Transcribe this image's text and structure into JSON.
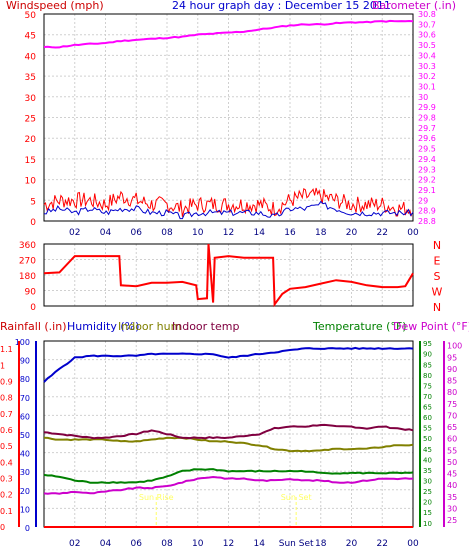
{
  "header": {
    "wind_label": "Windspeed (mph)",
    "title": "24 hour graph day : December 15 2011",
    "baro_label": "Barometer (.in)"
  },
  "colors": {
    "wind": "#ff0000",
    "wind_avg": "#0000cc",
    "barometer": "#ff00ff",
    "grid": "#d0d0d0",
    "rain": "#ff0000",
    "humidity": "#0000cc",
    "indoor_hum": "#808000",
    "indoor_temp": "#800040",
    "temperature": "#008000",
    "dew_point": "#cc00cc",
    "daylight_marker": "#ffff66"
  },
  "x_tick_labels": [
    "02",
    "04",
    "06",
    "08",
    "10",
    "12",
    "14",
    "16",
    "18",
    "20",
    "22",
    "00"
  ],
  "bottom_x_tick_labels": [
    "02",
    "04",
    "06",
    "08",
    "10",
    "12",
    "14",
    "Sun Set",
    "18",
    "20",
    "22",
    "00"
  ],
  "panel3": {
    "rain_label": "Rainfall (.in)",
    "humidity_label": "Humidity (%)",
    "indoor_hum_label": "Indoor hum",
    "indoor_temp_label": "Indoor temp",
    "temp_label": "Temperature (°F)",
    "dew_label": "Dew Point (°F)",
    "sunrise_label": "Sun Rise",
    "sunset_label": "Sun Set"
  },
  "chart_data": [
    {
      "type": "line",
      "title": "24 hour graph day : December 15 2011",
      "xlabel": "",
      "ylabel": "Windspeed (mph)",
      "y2label": "Barometer (.in)",
      "ylim": [
        0,
        50
      ],
      "y2lim": [
        28.8,
        30.8
      ],
      "yticks": [
        0,
        5,
        10,
        15,
        20,
        25,
        30,
        35,
        40,
        45,
        50
      ],
      "y2ticks": [
        28.8,
        28.9,
        29,
        29.1,
        29.2,
        29.3,
        29.4,
        29.5,
        29.6,
        29.7,
        29.8,
        29.9,
        30,
        30.1,
        30.2,
        30.3,
        30.4,
        30.5,
        30.6,
        30.7,
        30.8
      ],
      "x": [
        0,
        1,
        2,
        3,
        4,
        5,
        6,
        7,
        8,
        9,
        10,
        11,
        12,
        13,
        14,
        15,
        16,
        17,
        18,
        19,
        20,
        21,
        22,
        23,
        24
      ],
      "series": [
        {
          "name": "Windspeed (mph)",
          "axis": "left",
          "values": [
            2,
            3,
            2,
            3,
            2,
            3,
            3,
            2,
            2,
            1,
            2,
            2,
            2,
            2,
            2,
            1,
            3,
            3,
            4,
            3,
            2,
            2,
            2,
            2,
            2
          ]
        },
        {
          "name": "Gust",
          "axis": "left",
          "values": [
            4,
            5,
            5,
            5,
            4,
            6,
            5,
            4,
            4,
            3,
            4,
            4,
            4,
            4,
            4,
            3,
            5,
            6,
            6,
            5,
            4,
            4,
            4,
            3,
            3
          ]
        },
        {
          "name": "Barometer (.in)",
          "axis": "right",
          "values": [
            30.48,
            30.48,
            30.5,
            30.51,
            30.52,
            30.54,
            30.55,
            30.56,
            30.57,
            30.58,
            30.6,
            30.61,
            30.62,
            30.63,
            30.65,
            30.67,
            30.69,
            30.7,
            30.7,
            30.71,
            30.72,
            30.72,
            30.73,
            30.73,
            30.73
          ]
        }
      ]
    },
    {
      "type": "line",
      "ylabel": "Wind direction",
      "ylim": [
        0,
        360
      ],
      "yticks": [
        0,
        90,
        180,
        270,
        360
      ],
      "y2ticks": [
        "N",
        "W",
        "S",
        "E",
        "N"
      ],
      "x": [
        0,
        1,
        2,
        3,
        4,
        4.9,
        5,
        6,
        7,
        8,
        9,
        9.9,
        10,
        10.6,
        10.7,
        11,
        11.1,
        12,
        13,
        14,
        14.9,
        15,
        15.5,
        16,
        17,
        18,
        19,
        20,
        21,
        22,
        23,
        23.5,
        24
      ],
      "series": [
        {
          "name": "Wind direction",
          "values": [
            190,
            195,
            290,
            290,
            290,
            290,
            120,
            115,
            135,
            135,
            140,
            120,
            40,
            45,
            370,
            20,
            280,
            290,
            280,
            280,
            280,
            10,
            70,
            100,
            110,
            130,
            150,
            140,
            120,
            110,
            110,
            115,
            190
          ]
        }
      ]
    },
    {
      "type": "line",
      "xlabel": "",
      "ylabel": "Humidity (%)",
      "ylim": [
        0,
        100
      ],
      "yticks": [
        0,
        10,
        20,
        30,
        40,
        50,
        60,
        70,
        80,
        90,
        100
      ],
      "rain_ticks": [
        0,
        0.1,
        0.2,
        0.3,
        0.4,
        0.5,
        0.6,
        0.7,
        0.8,
        0.9,
        1,
        1.1
      ],
      "temp_ticks": [
        10,
        15,
        20,
        25,
        30,
        35,
        40,
        45,
        50,
        55,
        60,
        65,
        70,
        75,
        80,
        85,
        90,
        95
      ],
      "dew_ticks": [
        25,
        30,
        35,
        40,
        45,
        50,
        55,
        60,
        65,
        70,
        75,
        80,
        85,
        90,
        95,
        100
      ],
      "x": [
        0,
        1,
        2,
        3,
        4,
        5,
        6,
        7,
        8,
        9,
        10,
        11,
        12,
        13,
        14,
        15,
        16,
        17,
        18,
        19,
        20,
        21,
        22,
        23,
        24
      ],
      "series": [
        {
          "name": "Humidity (%)",
          "values": [
            78,
            85,
            91,
            92,
            92,
            92,
            92,
            93,
            93,
            93,
            93,
            93,
            91,
            92,
            93,
            94,
            95,
            96,
            96,
            96,
            96,
            96,
            96,
            96,
            96
          ]
        },
        {
          "name": "Indoor hum",
          "values": [
            48,
            47,
            47,
            47,
            47,
            46,
            46,
            47,
            48,
            48,
            47,
            46,
            46,
            45,
            44,
            42,
            41,
            41,
            41,
            42,
            42,
            42,
            43,
            44,
            44
          ]
        },
        {
          "name": "Indoor temp",
          "values": [
            51,
            50,
            49,
            48,
            48,
            49,
            50,
            52,
            50,
            48,
            48,
            48,
            48,
            49,
            50,
            53,
            54,
            54,
            55,
            54,
            54,
            53,
            54,
            53,
            52
          ]
        },
        {
          "name": "Temperature (°F)",
          "values": [
            28,
            27,
            25,
            24,
            24,
            24,
            24,
            25,
            27,
            30,
            31,
            31,
            30,
            30,
            30,
            30,
            30,
            30,
            29,
            29,
            29,
            29,
            29,
            29,
            29
          ]
        },
        {
          "name": "Dew Point (°F)",
          "values": [
            18,
            18,
            19,
            18,
            19,
            20,
            21,
            21,
            22,
            24,
            26,
            27,
            26,
            26,
            25,
            25,
            26,
            25,
            25,
            24,
            24,
            25,
            26,
            26,
            26
          ]
        },
        {
          "name": "Rainfall (.in)",
          "values": [
            0,
            0,
            0,
            0,
            0,
            0,
            0,
            0,
            0,
            0,
            0,
            0,
            0,
            0,
            0,
            0,
            0,
            0,
            0,
            0,
            0,
            0,
            0,
            0,
            0
          ]
        }
      ],
      "markers": [
        {
          "label": "Sun Rise",
          "x": 7.3
        },
        {
          "label": "Sun Set",
          "x": 16.4
        }
      ]
    }
  ]
}
